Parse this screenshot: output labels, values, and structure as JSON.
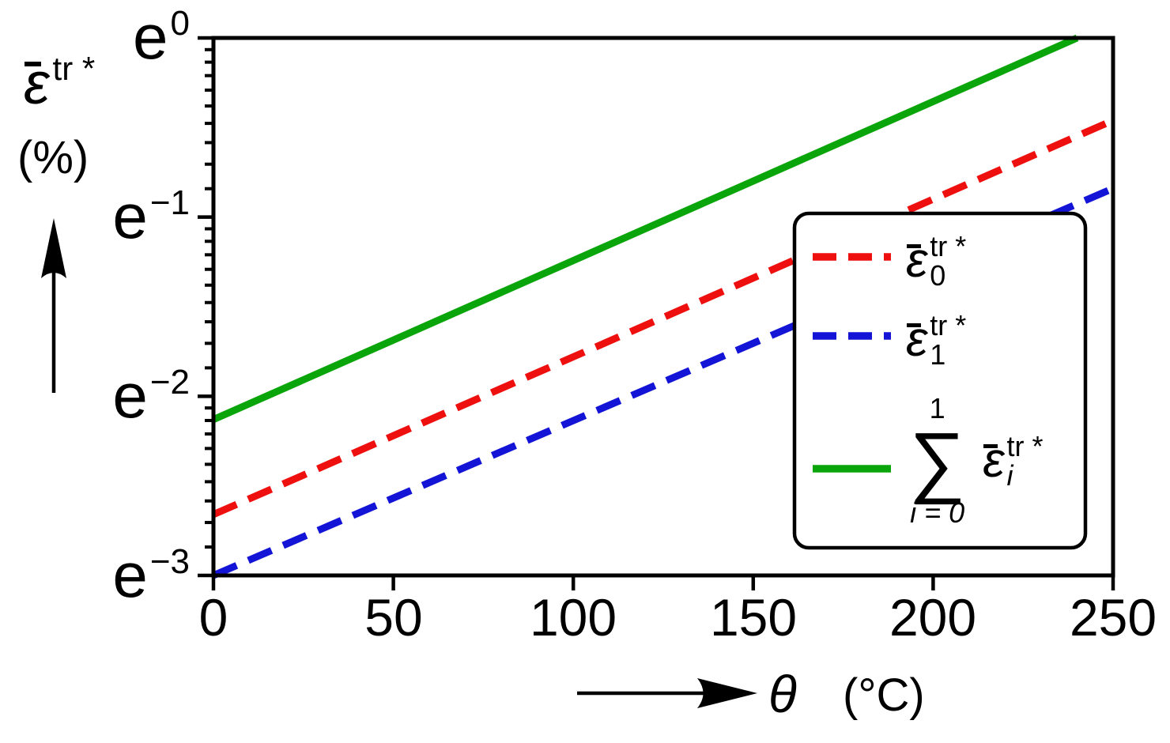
{
  "labels": {
    "y_symbol": "ε",
    "y_sup": "tr *",
    "y_unit": "(%)",
    "x_symbol": "θ",
    "x_unit": "(°C)"
  },
  "chart_data": {
    "type": "line",
    "title": "",
    "xlabel": "θ (°C)",
    "ylabel": "ε̄ tr* (%)",
    "x_axis": {
      "range": [
        0,
        250
      ],
      "ticks": [
        0,
        50,
        100,
        150,
        200,
        250
      ]
    },
    "y_axis": {
      "scale": "log-base-e",
      "range_ln": [
        -3,
        0
      ],
      "ticks": [
        {
          "base": "e",
          "exp": "0",
          "ln": 0
        },
        {
          "base": "e",
          "exp": "−1",
          "ln": -1
        },
        {
          "base": "e",
          "exp": "−2",
          "ln": -2
        },
        {
          "base": "e",
          "exp": "−3",
          "ln": -3
        }
      ],
      "minor_ticks_per_decade": 9
    },
    "series": [
      {
        "id": "eps0-transformation-strain",
        "label": "ε̄₀ tr*",
        "color": "#ee0f0f",
        "line_style": "dashed",
        "theta": [
          0,
          250
        ],
        "ln_values": [
          -2.66,
          -0.46
        ]
      },
      {
        "id": "eps1-transformation-strain",
        "label": "ε̄₁ tr*",
        "color": "#1414d7",
        "line_style": "dashed",
        "theta": [
          0,
          250
        ],
        "ln_values": [
          -3.0,
          -0.84
        ]
      },
      {
        "id": "sum-transformation-strain",
        "label": "Σ i=0..1 ε̄ᵢ tr*",
        "color": "#0aa50a",
        "line_style": "solid",
        "theta": [
          0,
          240
        ],
        "ln_values": [
          -2.13,
          0
        ]
      }
    ],
    "legend_position": "right-center",
    "grid": false
  },
  "legend": {
    "items": [
      {
        "eps": "ε",
        "sup": "tr *",
        "sub": "0",
        "color": "#ee0f0f",
        "line_style": "dashed"
      },
      {
        "eps": "ε",
        "sup": "tr *",
        "sub": "1",
        "color": "#1414d7",
        "line_style": "dashed"
      },
      {
        "sum_upper": "1",
        "sigma": "∑",
        "sum_lower": "i = 0",
        "eps": "ε",
        "sup": "tr *",
        "sub": "i",
        "color": "#0aa50a",
        "line_style": "solid"
      }
    ]
  }
}
